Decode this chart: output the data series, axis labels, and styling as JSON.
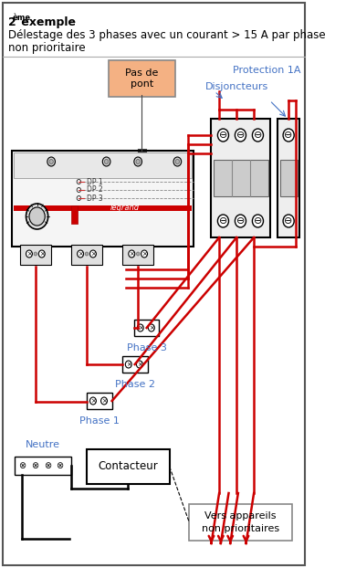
{
  "title_line1": "2",
  "title_superscript": "ème",
  "title_line2": " exemple",
  "subtitle": "Délestage des 3 phases avec un courant > 15 A par phase\nnon prioritaire",
  "label_pas_de_pont": "Pas de\npont",
  "label_protection": "Protection 1A",
  "label_disjoncteurs": "Disjoncteurs",
  "label_phase1": "Phase 1",
  "label_phase2": "Phase 2",
  "label_phase3": "Phase 3",
  "label_neutre": "Neutre",
  "label_contacteur": "Contacteur",
  "label_vers": "Vers appareils\nnon prioritaires",
  "red": "#cc0000",
  "black": "#000000",
  "blue_text": "#4472c4",
  "orange_box": "#f4b183",
  "light_gray": "#f0f0f0",
  "dark_gray": "#404040",
  "border_color": "#808080"
}
